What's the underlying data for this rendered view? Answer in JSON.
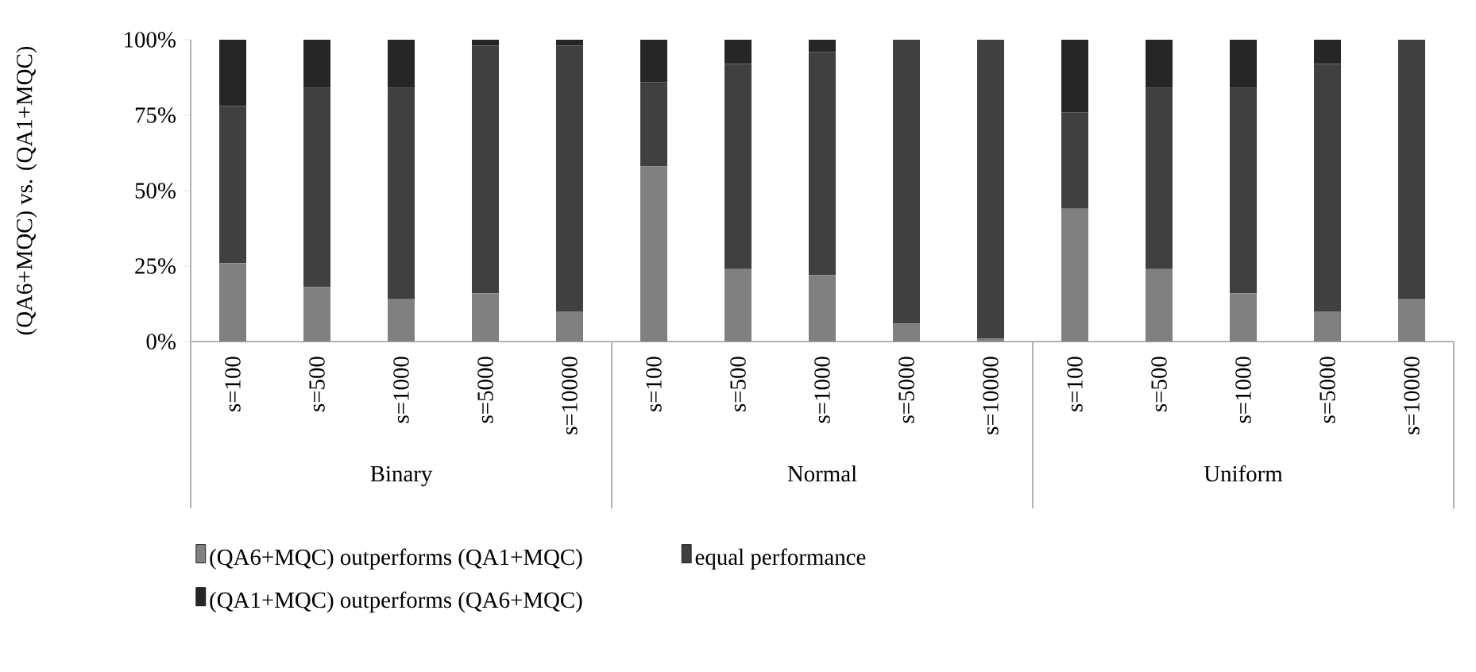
{
  "chart_data": {
    "type": "bar",
    "stacked": true,
    "ylabel": "(QA6+MQC) vs. (QA1+MQC)",
    "categories": [
      "s=100",
      "s=500",
      "s=1000",
      "s=5000",
      "s=10000",
      "s=100",
      "s=500",
      "s=1000",
      "s=5000",
      "s=10000",
      "s=100",
      "s=500",
      "s=1000",
      "s=5000",
      "s=10000"
    ],
    "annotations": [
      "Binary",
      "Normal",
      "Uniform"
    ],
    "series": [
      {
        "name": "(QA6+MQC) outperforms (QA1+MQC)",
        "color": "#808080",
        "values": [
          26,
          18,
          14,
          16,
          10,
          58,
          24,
          22,
          6,
          1,
          44,
          24,
          16,
          10,
          14
        ]
      },
      {
        "name": "equal performance",
        "color": "#404040",
        "values": [
          52,
          66,
          70,
          82,
          88,
          28,
          68,
          74,
          94,
          99,
          32,
          60,
          68,
          82,
          86
        ]
      },
      {
        "name": "(QA1+MQC) outperforms (QA6+MQC)",
        "color": "#262626",
        "values": [
          22,
          16,
          16,
          2,
          2,
          14,
          8,
          4,
          0,
          0,
          24,
          16,
          16,
          8,
          0
        ]
      }
    ],
    "ylim": [
      0,
      100
    ],
    "yticks": [
      {
        "value": 0,
        "label": "0%"
      },
      {
        "value": 25,
        "label": "25%"
      },
      {
        "value": 50,
        "label": "50%"
      },
      {
        "value": 75,
        "label": "75%"
      },
      {
        "value": 100,
        "label": "100%"
      }
    ],
    "legend": "bottom"
  }
}
